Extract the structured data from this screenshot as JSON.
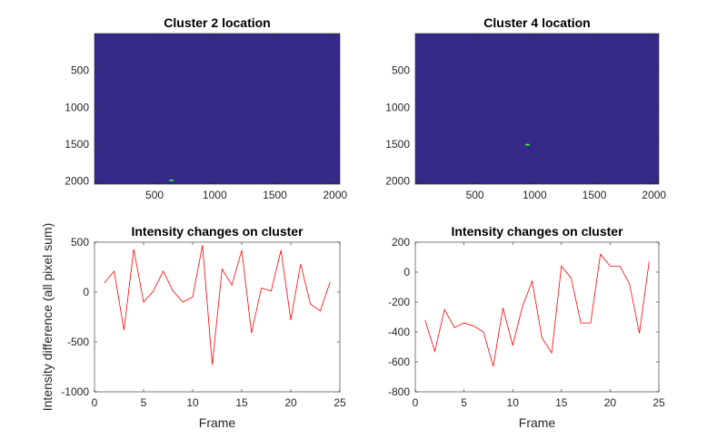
{
  "chart_data": [
    {
      "type": "heatmap",
      "title": "Cluster 2 location",
      "xlabel": "",
      "ylabel": "",
      "xlim": [
        1,
        2040
      ],
      "ylim": [
        1,
        2040
      ],
      "y_reversed": true,
      "xticks": [
        500,
        1000,
        1500,
        2000
      ],
      "yticks": [
        500,
        1000,
        1500,
        2000
      ],
      "background_color": "#352a87",
      "highlight_color": "#33f233",
      "highlight_points": [
        {
          "x": 640,
          "y": 1990,
          "w": 40,
          "h": 15
        }
      ]
    },
    {
      "type": "heatmap",
      "title": "Cluster 4 location",
      "xlabel": "",
      "ylabel": "",
      "xlim": [
        1,
        2040
      ],
      "ylim": [
        1,
        2040
      ],
      "y_reversed": true,
      "xticks": [
        500,
        1000,
        1500,
        2000
      ],
      "yticks": [
        500,
        1000,
        1500,
        2000
      ],
      "background_color": "#352a87",
      "highlight_color": "#33f233",
      "highlight_points": [
        {
          "x": 940,
          "y": 1505,
          "w": 40,
          "h": 18
        }
      ]
    },
    {
      "type": "line",
      "title": "Intensity changes on cluster",
      "xlabel": "Frame",
      "ylabel": "Intensity difference (all pixel sum)",
      "xlim": [
        0,
        25
      ],
      "ylim": [
        -1000,
        500
      ],
      "xticks": [
        0,
        5,
        10,
        15,
        20,
        25
      ],
      "yticks": [
        -1000,
        -500,
        0,
        500
      ],
      "line_color": "#ff0000",
      "x": [
        1,
        2,
        3,
        4,
        5,
        6,
        7,
        8,
        9,
        10,
        11,
        12,
        13,
        14,
        15,
        16,
        17,
        18,
        19,
        20,
        21,
        22,
        23,
        24
      ],
      "y": [
        90,
        210,
        -380,
        430,
        -100,
        10,
        210,
        10,
        -100,
        -50,
        470,
        -730,
        230,
        70,
        420,
        -410,
        40,
        10,
        420,
        -280,
        280,
        -120,
        -190,
        100
      ]
    },
    {
      "type": "line",
      "title": "Intensity changes on cluster",
      "xlabel": "Frame",
      "ylabel": "",
      "xlim": [
        0,
        25
      ],
      "ylim": [
        -800,
        200
      ],
      "xticks": [
        0,
        5,
        10,
        15,
        20,
        25
      ],
      "yticks": [
        -800,
        -600,
        -400,
        -200,
        0,
        200
      ],
      "line_color": "#ff0000",
      "x": [
        1,
        2,
        3,
        4,
        5,
        6,
        7,
        8,
        9,
        10,
        11,
        12,
        13,
        14,
        15,
        16,
        17,
        18,
        19,
        20,
        21,
        22,
        23,
        24
      ],
      "y": [
        -320,
        -530,
        -250,
        -370,
        -340,
        -360,
        -400,
        -630,
        -240,
        -490,
        -230,
        -60,
        -440,
        -540,
        40,
        -40,
        -340,
        -340,
        120,
        40,
        40,
        -80,
        -410,
        70
      ]
    }
  ]
}
